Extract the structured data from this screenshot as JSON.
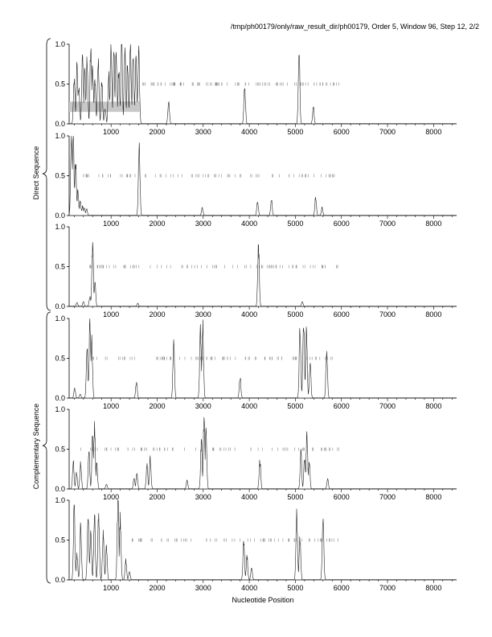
{
  "header": "/tmp/ph00179/only/raw_result_dir/ph00179, Order 5, Window 96, Step 12, 2/2",
  "xlabel": "Nucleotide Position",
  "group_labels": {
    "direct": "Direct Sequence",
    "complementary": "Complementary Sequence"
  },
  "chart_data": {
    "type": "line",
    "xlim": [
      90,
      8500
    ],
    "ylim": [
      0,
      1
    ],
    "x_ticks": [
      1000,
      2000,
      3000,
      4000,
      5000,
      6000,
      7000,
      8000
    ],
    "y_ticks": [
      "0.0",
      "0.5",
      "1.0"
    ],
    "line_color": "#222222",
    "mark_color": "#888888",
    "highlight_color": "#c8c8c8",
    "panels": [
      {
        "group": "direct",
        "highlight": {
          "x0": 90,
          "x1": 1620,
          "y0": 0.15,
          "y1": 0.28
        },
        "mark_range": [
          1560,
          5950
        ],
        "mark_count": 95,
        "peaks": [
          [
            200,
            0.55
          ],
          [
            260,
            0.75
          ],
          [
            300,
            0.45
          ],
          [
            380,
            0.9
          ],
          [
            430,
            0.65
          ],
          [
            480,
            0.8
          ],
          [
            560,
            0.98
          ],
          [
            600,
            0.7
          ],
          [
            650,
            0.55
          ],
          [
            720,
            0.85
          ],
          [
            800,
            0.5
          ],
          [
            870,
            0.2
          ],
          [
            950,
            0.6
          ],
          [
            1000,
            0.98
          ],
          [
            1060,
            0.85
          ],
          [
            1110,
            0.95
          ],
          [
            1170,
            0.7
          ],
          [
            1230,
            0.98
          ],
          [
            1300,
            0.9
          ],
          [
            1360,
            0.75
          ],
          [
            1420,
            0.98
          ],
          [
            1480,
            0.9
          ],
          [
            1540,
            0.8
          ],
          [
            1600,
            0.95
          ],
          [
            2250,
            0.28
          ],
          [
            3900,
            0.48
          ],
          [
            5080,
            0.88
          ],
          [
            5390,
            0.2
          ]
        ]
      },
      {
        "group": "direct",
        "mark_range": [
          350,
          6000
        ],
        "mark_count": 80,
        "peaks": [
          [
            140,
            0.98
          ],
          [
            180,
            0.95
          ],
          [
            230,
            0.7
          ],
          [
            280,
            0.3
          ],
          [
            330,
            0.2
          ],
          [
            380,
            0.12
          ],
          [
            420,
            0.1
          ],
          [
            470,
            0.08
          ],
          [
            1610,
            0.95
          ],
          [
            2980,
            0.1
          ],
          [
            4180,
            0.18
          ],
          [
            4480,
            0.2
          ],
          [
            5440,
            0.22
          ],
          [
            5580,
            0.1
          ]
        ]
      },
      {
        "group": "direct",
        "mark_range": [
          420,
          6000
        ],
        "mark_count": 85,
        "peaks": [
          [
            260,
            0.05
          ],
          [
            400,
            0.06
          ],
          [
            540,
            0.12
          ],
          [
            600,
            0.75
          ],
          [
            650,
            0.28
          ],
          [
            1580,
            0.04
          ],
          [
            4200,
            0.74
          ],
          [
            5150,
            0.06
          ]
        ]
      },
      {
        "group": "complementary",
        "mark_range": [
          590,
          5850
        ],
        "mark_count": 80,
        "peaks": [
          [
            210,
            0.12
          ],
          [
            330,
            0.05
          ],
          [
            480,
            0.6
          ],
          [
            540,
            0.95
          ],
          [
            580,
            0.7
          ],
          [
            1550,
            0.2
          ],
          [
            2360,
            0.73
          ],
          [
            2940,
            0.85
          ],
          [
            2990,
            0.9
          ],
          [
            3800,
            0.27
          ],
          [
            5100,
            0.9
          ],
          [
            5180,
            0.95
          ],
          [
            5240,
            0.8
          ],
          [
            5320,
            0.45
          ],
          [
            5680,
            0.62
          ]
        ]
      },
      {
        "group": "complementary",
        "mark_range": [
          200,
          6000
        ],
        "mark_count": 75,
        "peaks": [
          [
            180,
            0.34
          ],
          [
            250,
            0.2
          ],
          [
            340,
            0.33
          ],
          [
            520,
            0.45
          ],
          [
            600,
            0.7
          ],
          [
            640,
            0.78
          ],
          [
            690,
            0.3
          ],
          [
            900,
            0.06
          ],
          [
            1500,
            0.13
          ],
          [
            1560,
            0.18
          ],
          [
            1780,
            0.3
          ],
          [
            1850,
            0.38
          ],
          [
            2650,
            0.1
          ],
          [
            2960,
            0.6
          ],
          [
            3020,
            0.92
          ],
          [
            3060,
            0.75
          ],
          [
            4230,
            0.35
          ],
          [
            5120,
            0.45
          ],
          [
            5200,
            0.4
          ],
          [
            5250,
            0.65
          ],
          [
            5300,
            0.35
          ],
          [
            5700,
            0.12
          ]
        ]
      },
      {
        "group": "complementary",
        "mark_range": [
          1450,
          6000
        ],
        "mark_count": 70,
        "peaks": [
          [
            200,
            0.85
          ],
          [
            260,
            0.3
          ],
          [
            340,
            0.65
          ],
          [
            500,
            0.85
          ],
          [
            560,
            0.6
          ],
          [
            640,
            0.8
          ],
          [
            730,
            0.82
          ],
          [
            830,
            0.6
          ],
          [
            900,
            0.4
          ],
          [
            1150,
            0.98
          ],
          [
            1200,
            0.75
          ],
          [
            1320,
            0.25
          ],
          [
            1400,
            0.1
          ],
          [
            3880,
            0.5
          ],
          [
            3950,
            0.3
          ],
          [
            4050,
            0.15
          ],
          [
            5030,
            0.8
          ],
          [
            5100,
            0.55
          ],
          [
            5600,
            0.82
          ]
        ]
      }
    ]
  }
}
